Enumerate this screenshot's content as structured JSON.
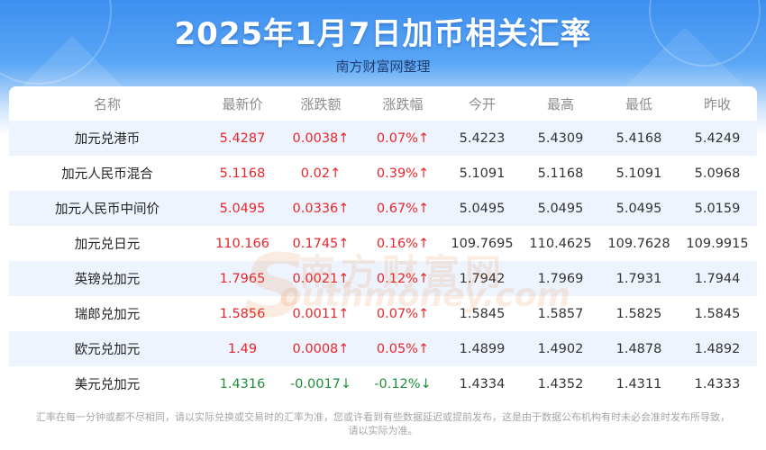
{
  "header": {
    "title": "2025年1月7日加币相关汇率",
    "subtitle": "南方财富网整理"
  },
  "table": {
    "columns": [
      "名称",
      "最新价",
      "涨跌额",
      "涨跌幅",
      "今开",
      "最高",
      "最低",
      "昨收"
    ],
    "rows": [
      {
        "name": "加元兑港币",
        "latest": "5.4287",
        "change": "0.0038↑",
        "pct": "0.07%↑",
        "open": "5.4223",
        "high": "5.4309",
        "low": "5.4168",
        "prev": "5.4249",
        "trend": "up"
      },
      {
        "name": "加元人民币混合",
        "latest": "5.1168",
        "change": "0.02↑",
        "pct": "0.39%↑",
        "open": "5.1091",
        "high": "5.1168",
        "low": "5.1091",
        "prev": "5.0968",
        "trend": "up"
      },
      {
        "name": "加元人民币中间价",
        "latest": "5.0495",
        "change": "0.0336↑",
        "pct": "0.67%↑",
        "open": "5.0495",
        "high": "5.0495",
        "low": "5.0495",
        "prev": "5.0159",
        "trend": "up"
      },
      {
        "name": "加元兑日元",
        "latest": "110.166",
        "change": "0.1745↑",
        "pct": "0.16%↑",
        "open": "109.7695",
        "high": "110.4625",
        "low": "109.7628",
        "prev": "109.9915",
        "trend": "up"
      },
      {
        "name": "英镑兑加元",
        "latest": "1.7965",
        "change": "0.0021↑",
        "pct": "0.12%↑",
        "open": "1.7942",
        "high": "1.7969",
        "low": "1.7931",
        "prev": "1.7944",
        "trend": "up"
      },
      {
        "name": "瑞郎兑加元",
        "latest": "1.5856",
        "change": "0.0011↑",
        "pct": "0.07%↑",
        "open": "1.5845",
        "high": "1.5857",
        "low": "1.5825",
        "prev": "1.5845",
        "trend": "up"
      },
      {
        "name": "欧元兑加元",
        "latest": "1.49",
        "change": "0.0008↑",
        "pct": "0.05%↑",
        "open": "1.4899",
        "high": "1.4902",
        "low": "1.4878",
        "prev": "1.4892",
        "trend": "up"
      },
      {
        "name": "美元兑加元",
        "latest": "1.4316",
        "change": "-0.0017↓",
        "pct": "-0.12%↓",
        "open": "1.4334",
        "high": "1.4352",
        "low": "1.4311",
        "prev": "1.4333",
        "trend": "down"
      }
    ]
  },
  "watermark": {
    "cn": "南方财富网",
    "en": "outhmoney.com",
    "s": "S"
  },
  "footer": {
    "line1": "汇率在每一分钟或都不尽相同，请以实际兑换或交易时的汇率为准，您或许看到有些数据延迟或提前发布，这是由于数据公布机构有时未必会准时发布所导致，",
    "line2": "请以实际为准。"
  },
  "colors": {
    "up": "#e8262b",
    "down": "#1f8f3a",
    "header_blue": "#3d8ff0",
    "row_stripe": "#eef4fd"
  }
}
